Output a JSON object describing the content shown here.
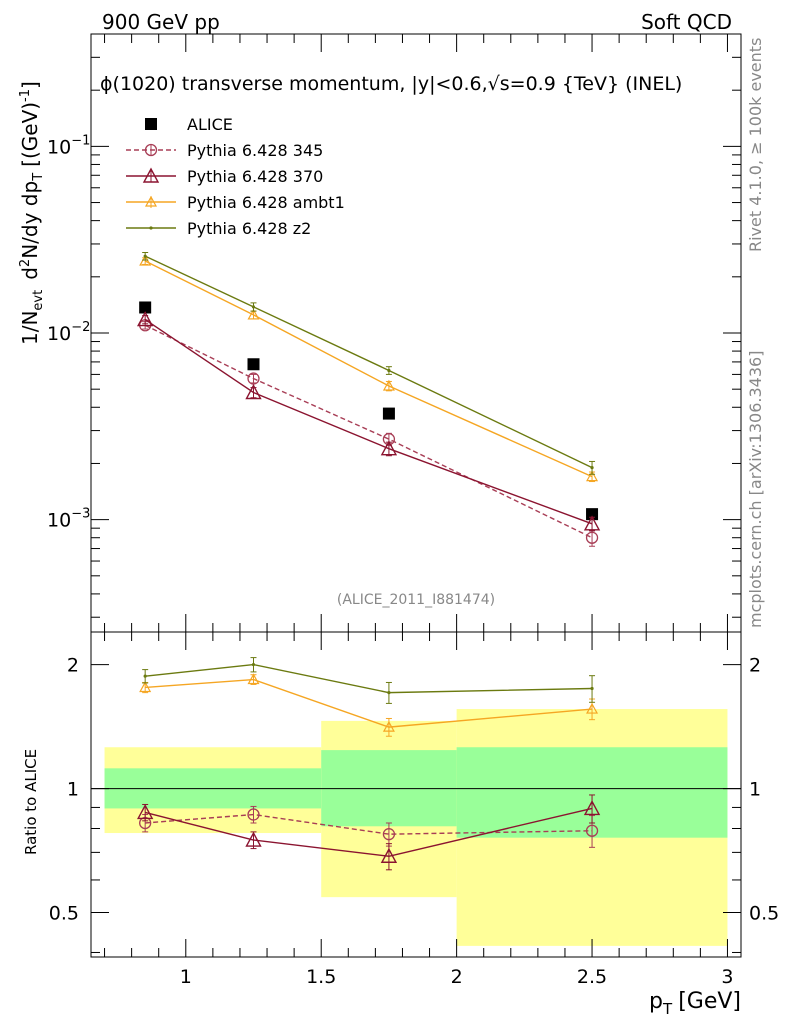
{
  "header": {
    "left": "900 GeV pp",
    "right": "Soft QCD"
  },
  "side_text": {
    "rivet": "Rivet 4.1.0, ≥ 100k events",
    "mcplots": "mcplots.cern.ch [arXiv:1306.3436]"
  },
  "watermark": "(ALICE_2011_I881474)",
  "colors": {
    "alice": "#000000",
    "p345": "#a83e56",
    "p370": "#8b1430",
    "ambt1": "#f5a623",
    "z2": "#6b7a10",
    "band_inner": "#99ff99",
    "band_outer": "#ffff99"
  },
  "chart_data": [
    {
      "panel": "main",
      "type": "line",
      "title": "ϕ(1020) transverse momentum, |y|<0.6,√s=0.9 {TeV} (INEL)",
      "ylabel_parts": {
        "pre": "1/N",
        "evt": "evt",
        "mid": "d",
        "sup2": "2",
        "rest": "N/dy dp",
        "T": "T",
        "unit": "[(GeV)",
        "unit_sup": "-1",
        "close": "]"
      },
      "yscale": "log",
      "ylim": [
        0.00025,
        0.4
      ],
      "xlim": [
        0.65,
        3.05
      ],
      "y_ticks": [
        {
          "value": 0.1,
          "base": "10",
          "exp": "−1"
        },
        {
          "value": 0.01,
          "base": "10",
          "exp": "−2"
        },
        {
          "value": 0.001,
          "base": "10",
          "exp": "−3"
        }
      ],
      "legend_position": "top-left",
      "series": [
        {
          "key": "alice",
          "name": "ALICE",
          "marker": "square",
          "style": "none",
          "x": [
            0.85,
            1.25,
            1.75,
            2.5
          ],
          "y": [
            0.0137,
            0.0068,
            0.0037,
            0.00107
          ],
          "err": [
            0,
            0,
            0,
            0
          ]
        },
        {
          "key": "p345",
          "name": "Pythia 6.428 345",
          "marker": "circle",
          "style": "dashed",
          "x": [
            0.85,
            1.25,
            1.75,
            2.5
          ],
          "y": [
            0.011,
            0.0057,
            0.0027,
            0.0008
          ],
          "err": [
            0.0005,
            0.0003,
            0.0002,
            8e-05
          ]
        },
        {
          "key": "p370",
          "name": "Pythia 6.428 370",
          "marker": "triangle",
          "style": "solid",
          "x": [
            0.85,
            1.25,
            1.75,
            2.5
          ],
          "y": [
            0.0118,
            0.0048,
            0.0024,
            0.00095
          ],
          "err": [
            0.0006,
            0.0003,
            0.0002,
            8e-05
          ]
        },
        {
          "key": "ambt1",
          "name": "Pythia 6.428 ambt1",
          "marker": "triangle-small",
          "style": "solid",
          "x": [
            0.85,
            1.25,
            1.75,
            2.5
          ],
          "y": [
            0.0243,
            0.0125,
            0.0052,
            0.0017
          ],
          "err": [
            0.001,
            0.0006,
            0.0003,
            0.0001
          ]
        },
        {
          "key": "z2",
          "name": "Pythia 6.428 z2",
          "marker": "dot",
          "style": "solid",
          "x": [
            0.85,
            1.25,
            1.75,
            2.5
          ],
          "y": [
            0.0258,
            0.0138,
            0.0063,
            0.0019
          ],
          "err": [
            0.0012,
            0.0007,
            0.0003,
            0.00015
          ]
        }
      ]
    },
    {
      "panel": "ratio",
      "type": "line",
      "ylabel": "Ratio to ALICE",
      "xlabel": "p",
      "xlabel_sub": "T",
      "xlabel_unit": "[GeV]",
      "yscale": "log",
      "ylim": [
        0.39,
        2.4
      ],
      "xlim": [
        0.65,
        3.05
      ],
      "x_ticks": [
        "1",
        "1.5",
        "2",
        "2.5",
        "3"
      ],
      "x_tick_values": [
        1,
        1.5,
        2,
        2.5,
        3
      ],
      "y_ticks": [
        "0.5",
        "1",
        "2"
      ],
      "y_tick_values": [
        0.5,
        1,
        2
      ],
      "reference": 1,
      "bands": [
        {
          "x0": 0.7,
          "x1": 1.5,
          "inner": [
            0.895,
            1.12
          ],
          "outer": [
            0.78,
            1.26
          ]
        },
        {
          "x0": 1.5,
          "x1": 2.0,
          "inner": [
            0.81,
            1.24
          ],
          "outer": [
            0.545,
            1.46
          ]
        },
        {
          "x0": 2.0,
          "x1": 3.0,
          "inner": [
            0.76,
            1.26
          ],
          "outer": [
            0.415,
            1.56
          ]
        }
      ],
      "series": [
        {
          "key": "p345",
          "x": [
            0.85,
            1.25,
            1.75,
            2.5
          ],
          "y": [
            0.825,
            0.865,
            0.775,
            0.79
          ],
          "err": [
            0.04,
            0.04,
            0.05,
            0.07
          ]
        },
        {
          "key": "p370",
          "x": [
            0.85,
            1.25,
            1.75,
            2.5
          ],
          "y": [
            0.875,
            0.75,
            0.685,
            0.895
          ],
          "err": [
            0.04,
            0.035,
            0.05,
            0.07
          ]
        },
        {
          "key": "ambt1",
          "x": [
            0.85,
            1.25,
            1.75,
            2.5
          ],
          "y": [
            1.76,
            1.84,
            1.41,
            1.56
          ],
          "err": [
            0.05,
            0.05,
            0.07,
            0.09
          ]
        },
        {
          "key": "z2",
          "x": [
            0.85,
            1.25,
            1.75,
            2.5
          ],
          "y": [
            1.875,
            2.0,
            1.71,
            1.75
          ],
          "err": [
            0.07,
            0.08,
            0.1,
            0.13
          ]
        }
      ]
    }
  ]
}
